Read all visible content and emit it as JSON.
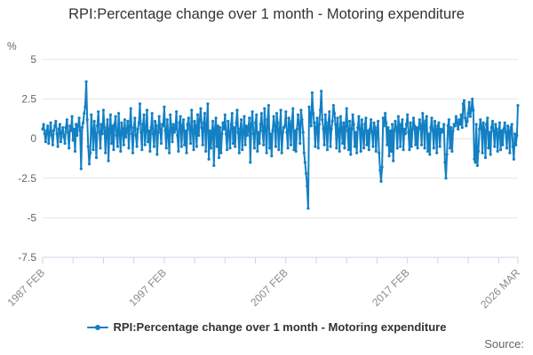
{
  "chart_data": {
    "type": "line",
    "title": "RPI:Percentage change over 1 month - Motoring expenditure",
    "series_name": "RPI:Percentage change over 1 month - Motoring expenditure",
    "unit": "%",
    "source_label": "Source:",
    "ylim": [
      -7.5,
      5
    ],
    "y_ticks": [
      5,
      2.5,
      0,
      -2.5,
      -5,
      -7.5
    ],
    "x_start": "1987 FEB",
    "x_end": "2026 MAR",
    "x_major_ticks": [
      {
        "index": 0,
        "label": "1987 FEB"
      },
      {
        "index": 120,
        "label": "1997 FEB"
      },
      {
        "index": 240,
        "label": "2007 FEB"
      },
      {
        "index": 360,
        "label": "2017 FEB"
      },
      {
        "index": 469,
        "label": "2026 MAR"
      }
    ],
    "minor_tick_every": 30,
    "x_label_rotation": -45,
    "colors": {
      "line": "#1380c4",
      "grid": "#e6e6e6",
      "axis_line": "#ccd6eb",
      "y_label": "#666666",
      "x_label": "#8a8a8a",
      "title": "#333333",
      "legend_text": "#333333",
      "source": "#666666"
    },
    "values": [
      0.6,
      0.9,
      0.3,
      -0.2,
      0.5,
      0.8,
      -0.3,
      0.4,
      1.0,
      0.2,
      -0.4,
      0.5,
      0.8,
      1.1,
      0.3,
      -0.5,
      0.6,
      0.9,
      -0.2,
      0.4,
      0.7,
      0.1,
      -0.3,
      0.7,
      1.2,
      0.4,
      -0.6,
      0.8,
      0.5,
      1.4,
      -0.1,
      0.6,
      -0.8,
      0.9,
      0.2,
      0.8,
      1.3,
      0.5,
      -1.9,
      0.7,
      1.0,
      1.6,
      2.0,
      3.6,
      1.2,
      -0.5,
      -1.6,
      -0.9,
      1.5,
      0.6,
      -0.7,
      1.1,
      0.3,
      -1.2,
      0.8,
      1.7,
      0.4,
      -0.6,
      0.9,
      0.3,
      1.8,
      0.7,
      -0.9,
      0.5,
      1.2,
      -1.4,
      0.6,
      1.5,
      -0.3,
      0.8,
      -0.7,
      0.9,
      1.4,
      0.2,
      -0.5,
      1.6,
      0.4,
      -0.8,
      1.0,
      0.6,
      -0.4,
      1.2,
      0.1,
      0.5,
      1.1,
      -0.6,
      0.8,
      1.9,
      0.3,
      -0.9,
      0.7,
      1.3,
      0.2,
      -0.5,
      0.6,
      1.0,
      2.2,
      0.4,
      -0.7,
      0.9,
      1.5,
      -0.4,
      0.6,
      1.8,
      -0.2,
      0.5,
      -0.8,
      0.7,
      1.6,
      0.3,
      -0.5,
      1.1,
      0.8,
      -1.0,
      0.4,
      1.4,
      0.6,
      -0.3,
      0.9,
      0.8,
      2.0,
      0.5,
      -0.6,
      1.2,
      0.3,
      -0.9,
      1.5,
      0.7,
      -0.2,
      0.9,
      0.4,
      0.6,
      1.7,
      0.2,
      -0.8,
      1.0,
      1.4,
      -0.5,
      0.8,
      1.2,
      -0.4,
      0.5,
      -0.9,
      0.9,
      1.3,
      0.6,
      -0.3,
      1.8,
      0.5,
      -0.7,
      1.1,
      0.8,
      -0.5,
      1.5,
      0.2,
      1.2,
      1.9,
      0.7,
      -0.4,
      1.0,
      1.6,
      -0.8,
      0.9,
      2.2,
      -1.3,
      0.5,
      -0.6,
      0.4,
      1.1,
      -1.7,
      0.6,
      1.3,
      -0.5,
      0.8,
      -1.2,
      0.7,
      -0.9,
      0.3,
      1.0,
      0.6,
      1.5,
      0.3,
      -0.7,
      1.1,
      0.4,
      -0.6,
      0.9,
      1.6,
      -0.3,
      0.7,
      -0.5,
      1.0,
      1.8,
      0.4,
      -0.9,
      0.6,
      1.2,
      -0.7,
      0.5,
      1.4,
      -0.4,
      0.8,
      0.2,
      0.7,
      1.3,
      -1.5,
      0.9,
      1.7,
      0.3,
      -0.6,
      1.0,
      1.5,
      -0.8,
      0.4,
      -0.3,
      0.9,
      1.6,
      0.5,
      -0.4,
      1.9,
      0.6,
      -0.9,
      1.2,
      2.1,
      -0.6,
      0.3,
      -1.1,
      0.5,
      1.4,
      0.8,
      -0.5,
      1.6,
      1.0,
      -0.7,
      0.6,
      1.8,
      -0.9,
      0.4,
      0.7,
      0.8,
      1.7,
      0.4,
      -0.6,
      1.3,
      0.9,
      -0.4,
      1.1,
      1.9,
      -0.7,
      0.5,
      -0.8,
      0.6,
      1.5,
      0.9,
      -0.3,
      1.8,
      1.2,
      0.4,
      -0.9,
      -1.5,
      -2.2,
      -3.0,
      -4.4,
      2.0,
      1.4,
      0.8,
      2.9,
      1.6,
      1.0,
      -0.5,
      0.7,
      1.3,
      -0.6,
      0.9,
      1.8,
      3.0,
      1.2,
      0.6,
      -0.4,
      1.5,
      0.8,
      -0.7,
      1.0,
      1.7,
      -0.5,
      0.6,
      1.1,
      2.1,
      1.6,
      0.9,
      -0.6,
      1.3,
      0.5,
      -0.8,
      1.4,
      0.7,
      -0.3,
      1.0,
      -0.6,
      0.8,
      1.9,
      0.5,
      -0.7,
      1.1,
      -1.0,
      0.6,
      1.5,
      0.9,
      -0.5,
      0.4,
      -0.9,
      0.7,
      1.4,
      0.6,
      -0.8,
      1.2,
      0.4,
      -0.6,
      0.9,
      1.3,
      -0.4,
      0.5,
      -0.7,
      0.6,
      1.2,
      0.4,
      -0.5,
      1.0,
      0.7,
      -0.8,
      0.5,
      1.1,
      -0.9,
      -2.0,
      -2.7,
      -1.8,
      1.3,
      0.8,
      1.6,
      1.0,
      -0.4,
      0.7,
      -1.1,
      0.5,
      -0.8,
      0.9,
      -1.4,
      0.5,
      1.1,
      0.7,
      -0.6,
      1.4,
      0.8,
      -0.5,
      0.9,
      1.2,
      -0.7,
      0.6,
      0.3,
      0.9,
      1.5,
      0.4,
      -0.7,
      1.0,
      -0.5,
      0.6,
      1.3,
      0.8,
      -0.4,
      0.7,
      -0.6,
      0.6,
      1.2,
      0.8,
      -0.4,
      1.6,
      0.9,
      -0.6,
      1.1,
      1.4,
      -0.8,
      0.3,
      -1.0,
      0.7,
      1.3,
      0.5,
      -0.6,
      1.1,
      0.6,
      -0.9,
      0.8,
      1.0,
      -0.5,
      0.6,
      0.4,
      0.5,
      0.9,
      -1.5,
      -2.5,
      -1.0,
      0.8,
      1.2,
      -0.6,
      0.7,
      -0.8,
      0.5,
      0.9,
      0.8,
      1.4,
      1.0,
      0.6,
      1.2,
      0.9,
      1.5,
      0.7,
      2.2,
      2.4,
      1.3,
      0.8,
      1.1,
      1.6,
      2.3,
      1.4,
      1.8,
      2.5,
      1.8,
      -1.3,
      -1.5,
      0.9,
      -1.7,
      -0.8,
      0.6,
      1.2,
      0.8,
      -0.9,
      1.0,
      0.5,
      -1.2,
      0.9,
      1.3,
      -0.6,
      0.4,
      -1.0,
      0.7,
      1.1,
      0.5,
      -0.5,
      0.9,
      0.6,
      -0.8,
      0.4,
      1.0,
      -0.7,
      0.5,
      -0.4,
      0.6,
      1.0,
      0.4,
      -0.6,
      0.8,
      0.5,
      -0.9,
      0.7,
      0.9,
      -0.5,
      -1.3,
      0.3,
      -0.4,
      0.2,
      2.1
    ]
  }
}
